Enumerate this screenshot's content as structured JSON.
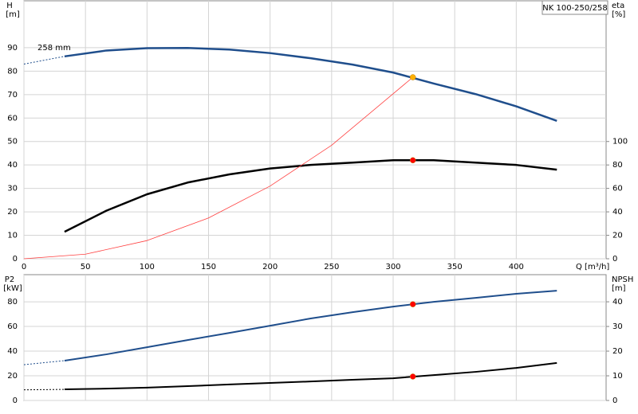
{
  "chart_data": [
    {
      "type": "line",
      "y_label": "H",
      "y_unit": "[m]",
      "y2_label": "eta",
      "y2_unit": "[%]",
      "x_label": "Q [m³/h]",
      "annotation": "258 mm",
      "annotation_box": "NK 100-250/258",
      "grid": true,
      "xlim": [
        0,
        473
      ],
      "xticks": [
        0,
        50,
        100,
        150,
        200,
        250,
        300,
        350,
        400
      ],
      "ylim": [
        0,
        110
      ],
      "yticks": [
        0,
        10,
        20,
        30,
        40,
        50,
        60,
        70,
        80,
        90
      ],
      "y2lim": [
        0,
        220
      ],
      "y2ticks": [
        0,
        20,
        40,
        60,
        80,
        100
      ],
      "series": [
        {
          "color": "#1f4e8c",
          "width": 2.5,
          "extrapolated_start": true,
          "x": [
            0,
            33,
            67,
            100,
            133,
            167,
            200,
            233,
            267,
            300,
            333,
            367,
            400,
            433
          ],
          "values": [
            83,
            86.3,
            88.8,
            89.8,
            89.9,
            89.2,
            87.7,
            85.5,
            82.8,
            79.4,
            74.7,
            70.2,
            65,
            58.8
          ]
        },
        {
          "color": "#000000",
          "width": 2.5,
          "axis": "y2",
          "x": [
            33,
            67,
            100,
            133,
            167,
            200,
            233,
            267,
            300,
            333,
            367,
            400,
            433
          ],
          "values": [
            23,
            41,
            55,
            65,
            72,
            77,
            80,
            82,
            84,
            84,
            82,
            80,
            76
          ]
        },
        {
          "color": "#ff4040",
          "width": 0.8,
          "x": [
            0,
            50,
            100,
            150,
            200,
            250,
            316
          ],
          "values": [
            0,
            1.94,
            7.75,
            17.4,
            31,
            48.4,
            77.4
          ]
        }
      ],
      "markers": [
        {
          "x": 316,
          "y": 77.4,
          "color": "#ffb000"
        },
        {
          "x": 316,
          "y": 84,
          "color": "#ff0000",
          "axis": "y2"
        }
      ]
    },
    {
      "type": "line",
      "y_label": "P2",
      "y_unit": "[kW]",
      "y2_label": "NPSH",
      "y2_unit": "[m]",
      "grid": true,
      "xlim": [
        0,
        473
      ],
      "xticks": [
        0,
        50,
        100,
        150,
        200,
        250,
        300,
        350,
        400
      ],
      "ylim": [
        0,
        102
      ],
      "yticks": [
        0,
        20,
        40,
        60,
        80
      ],
      "y2lim": [
        0,
        51
      ],
      "y2ticks": [
        0,
        10,
        20,
        30,
        40
      ],
      "series": [
        {
          "color": "#1f4e8c",
          "width": 2,
          "extrapolated_start": true,
          "x": [
            0,
            33,
            67,
            100,
            133,
            167,
            200,
            233,
            267,
            300,
            333,
            367,
            400,
            433
          ],
          "values": [
            29,
            32.3,
            37.4,
            43.2,
            49,
            54.8,
            60.6,
            66.5,
            71.6,
            76.1,
            80,
            83.2,
            86.5,
            89
          ]
        },
        {
          "color": "#000000",
          "width": 2,
          "axis": "y2",
          "extrapolated_start": true,
          "x": [
            0,
            33,
            67,
            100,
            133,
            167,
            200,
            233,
            267,
            300,
            333,
            367,
            400,
            433
          ],
          "values": [
            4.3,
            4.5,
            4.8,
            5.2,
            5.8,
            6.5,
            7.1,
            7.7,
            8.4,
            9,
            10.3,
            11.6,
            13.2,
            15.2
          ]
        }
      ],
      "markers": [
        {
          "x": 316,
          "y": 78,
          "color": "#ff0000"
        },
        {
          "x": 316,
          "y": 9.7,
          "color": "#ff0000",
          "axis": "y2"
        }
      ]
    }
  ]
}
